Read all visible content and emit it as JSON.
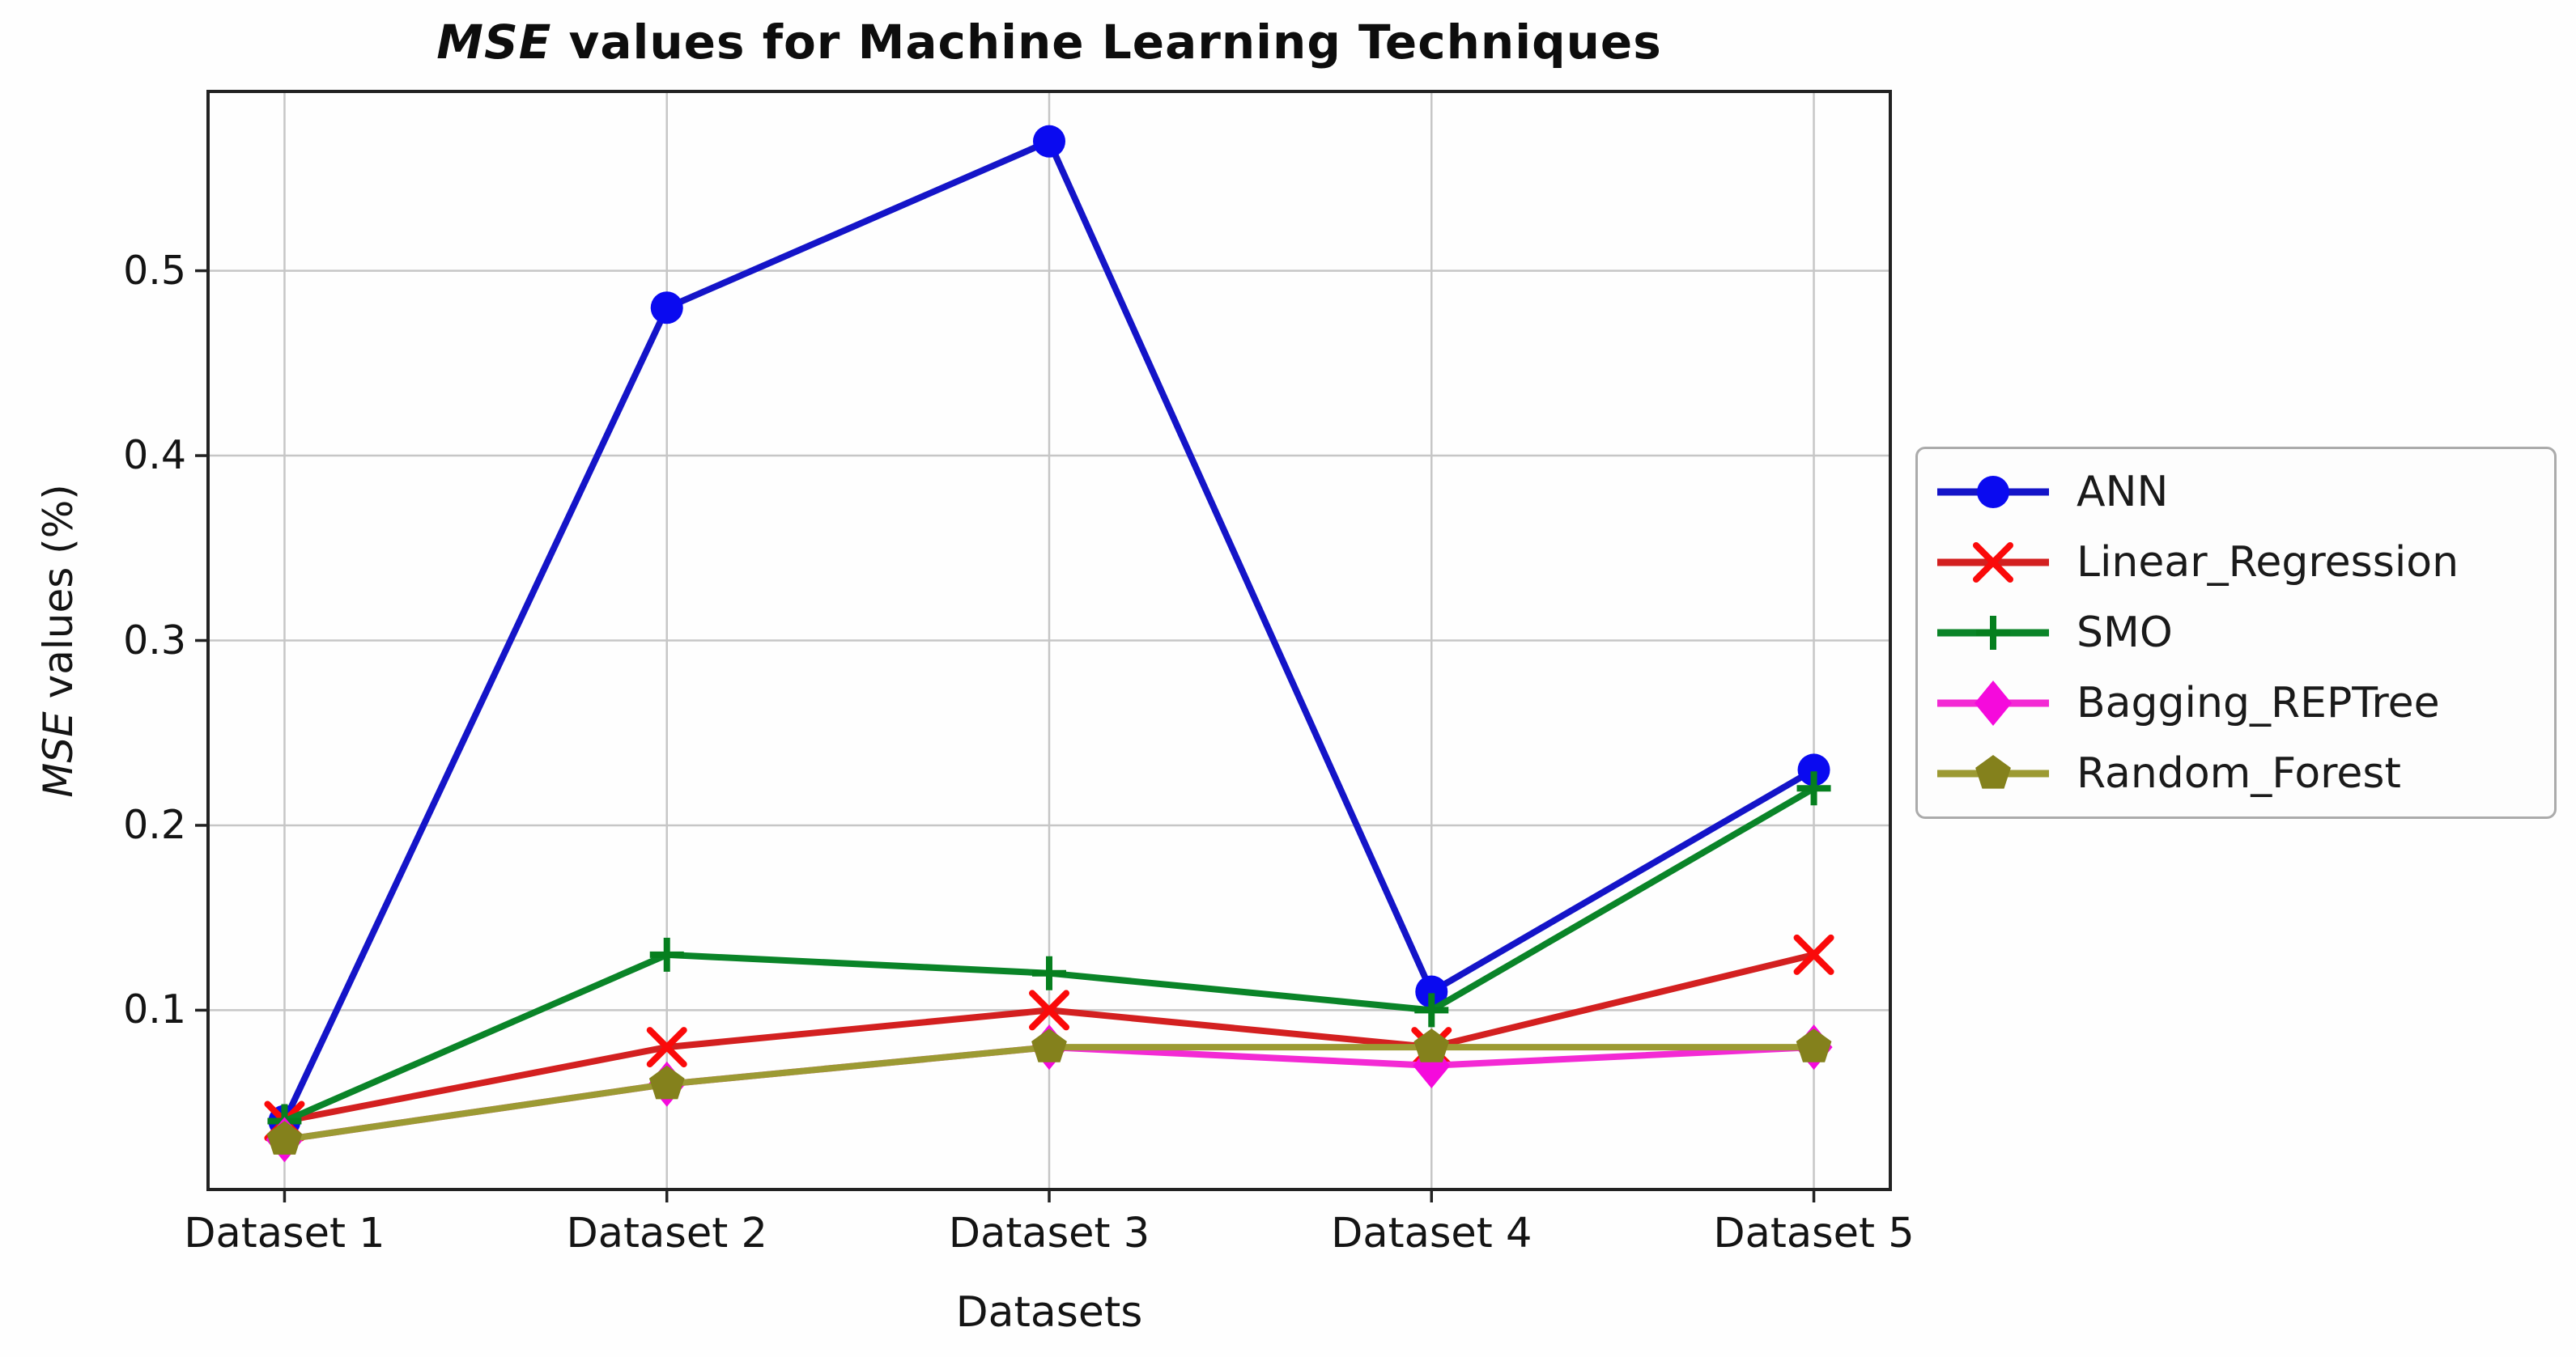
{
  "chart_data": {
    "type": "line",
    "title_italic": "MSE",
    "title_rest": " values for Machine Learning Techniques",
    "xlabel": "Datasets",
    "ylabel_italic": "MSE",
    "ylabel_rest": " values (%)",
    "categories": [
      "Dataset 1",
      "Dataset 2",
      "Dataset 3",
      "Dataset 4",
      "Dataset 5"
    ],
    "ytick_labels": [
      "0.1",
      "0.2",
      "0.3",
      "0.4",
      "0.5"
    ],
    "yticks": [
      0.1,
      0.2,
      0.3,
      0.4,
      0.5
    ],
    "ylim": [
      0.003,
      0.597
    ],
    "xlim": [
      -0.2,
      4.2
    ],
    "grid": true,
    "grid_color": "#c6c6c6",
    "background_color": "#fefefe",
    "spine_color": "#222222",
    "legend_position": "outside-right",
    "series": [
      {
        "name": "ANN",
        "marker": "circle",
        "color": "#0a0af0",
        "line_color": "#1414c8",
        "values": [
          0.04,
          0.48,
          0.57,
          0.11,
          0.23
        ]
      },
      {
        "name": "Linear_Regression",
        "marker": "x",
        "color": "#fa0a0a",
        "line_color": "#d32020",
        "values": [
          0.04,
          0.08,
          0.1,
          0.08,
          0.13
        ]
      },
      {
        "name": "SMO",
        "marker": "plus",
        "color": "#067f1f",
        "line_color": "#0a8428",
        "values": [
          0.04,
          0.13,
          0.12,
          0.1,
          0.22
        ]
      },
      {
        "name": "Bagging_REPTree",
        "marker": "diamond",
        "color": "#f50adc",
        "line_color": "#f32ad4",
        "values": [
          0.03,
          0.06,
          0.08,
          0.07,
          0.08
        ]
      },
      {
        "name": "Random_Forest",
        "marker": "pentagon",
        "color": "#84811c",
        "line_color": "#9c9a33",
        "values": [
          0.03,
          0.06,
          0.08,
          0.08,
          0.08
        ]
      }
    ]
  }
}
